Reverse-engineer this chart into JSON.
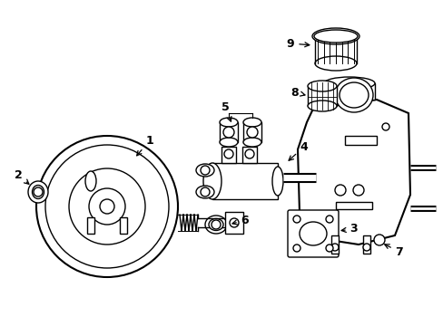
{
  "background_color": "#ffffff",
  "line_color": "#000000",
  "line_width": 1.0,
  "fig_width": 4.89,
  "fig_height": 3.6,
  "dpi": 100
}
